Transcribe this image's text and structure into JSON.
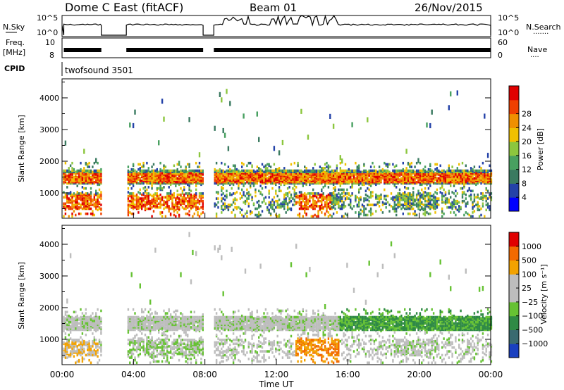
{
  "header": {
    "title": "Dome C East (fitACF)",
    "beam": "Beam 01",
    "date": "26/Nov/2015"
  },
  "panels": {
    "nsky": {
      "left_label": "N.Sky",
      "left_ticks": [
        "10^5",
        "10^0"
      ],
      "right_ticks": [
        "10^5",
        "10^0"
      ],
      "right_label": "N.Search",
      "right_dots": "·······"
    },
    "freq": {
      "left_label_top": "Freq.",
      "left_label_unit": "[MHz]",
      "left_ticks": [
        "10",
        "8"
      ],
      "right_ticks": [
        "60",
        "0"
      ],
      "right_label": "Nave",
      "right_dots": "····"
    },
    "cpid": {
      "label": "CPID",
      "value": "twofsound 3501"
    }
  },
  "colors": {
    "power_scale": [
      "#0000ff",
      "#2442a8",
      "#3a7a60",
      "#48a060",
      "#8cc63e",
      "#f0c000",
      "#f09000",
      "#f04000",
      "#e00000"
    ],
    "velocity_scale": [
      "#1a40c0",
      "#3a6a70",
      "#2f8a45",
      "#66c233",
      "#bdbdbd",
      "#bdbdbd",
      "#f2a200",
      "#f26a00",
      "#e00000"
    ]
  },
  "chart_data": [
    {
      "type": "heatmap",
      "name": "power",
      "xlabel": "",
      "ylabel": "Slant Range [km]",
      "x_ticks": [
        "00:00",
        "04:00",
        "08:00",
        "12:00",
        "16:00",
        "20:00",
        "00:00"
      ],
      "xlim": [
        0,
        24
      ],
      "ylim": [
        200,
        4600
      ],
      "y_ticks": [
        1000,
        2000,
        3000,
        4000
      ],
      "colorbar": {
        "label": "Power [dB]",
        "range": [
          0,
          32
        ],
        "ticks": [
          "4",
          "8",
          "12",
          "16",
          "20",
          "24",
          "28"
        ]
      },
      "data_gaps_hours": [
        [
          2.2,
          3.6
        ],
        [
          7.9,
          8.5
        ]
      ],
      "scatter_bands_km": [
        [
          1350,
          1750
        ],
        [
          500,
          1000
        ]
      ]
    },
    {
      "type": "heatmap",
      "name": "velocity",
      "xlabel": "Time UT",
      "ylabel": "Slant Range [km]",
      "x_ticks": [
        "00:00",
        "04:00",
        "08:00",
        "12:00",
        "16:00",
        "20:00",
        "00:00"
      ],
      "xlim": [
        0,
        24
      ],
      "ylim": [
        200,
        4600
      ],
      "y_ticks": [
        1000,
        2000,
        3000,
        4000
      ],
      "colorbar": {
        "label": "Velocity [m s⁻¹]",
        "ticks": [
          "1000",
          "500",
          "100",
          "25",
          "−25",
          "−100",
          "−500",
          "−1000"
        ]
      },
      "data_gaps_hours": [
        [
          2.2,
          3.6
        ],
        [
          7.9,
          8.5
        ]
      ]
    }
  ]
}
